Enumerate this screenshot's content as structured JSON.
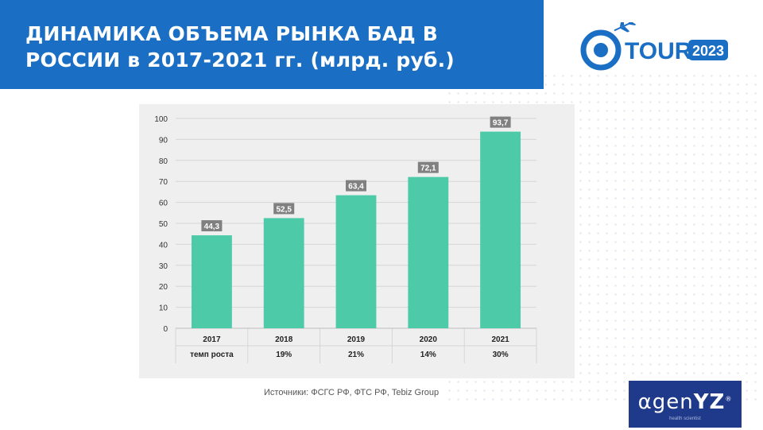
{
  "header": {
    "title": "ДИНАМИКА  ОБЪЕМА РЫНКА  БАД В\nРОССИИ в 2017-2021 гг. (млрд. руб.)"
  },
  "logo_tour": {
    "word": "TOUR",
    "year": "2023",
    "accent_color": "#1a6fc4",
    "icon": "airplane-icon"
  },
  "logo_agenyz": {
    "prefix": "αgen",
    "suffix": "YZ",
    "mark": "®",
    "tagline": "health scientist",
    "bg_color": "#1f3a8a"
  },
  "source_note": "Источники: ФСГС РФ, ФТС РФ, Tebiz Group",
  "chart_data": {
    "type": "bar",
    "categories": [
      "2017",
      "2018",
      "2019",
      "2020",
      "2021"
    ],
    "values": [
      44.3,
      52.5,
      63.4,
      72.1,
      93.7
    ],
    "data_labels": [
      "44,3",
      "52,5",
      "63,4",
      "72,1",
      "93,7"
    ],
    "ylim": [
      0,
      100
    ],
    "yticks": [
      0,
      10,
      20,
      30,
      40,
      50,
      60,
      70,
      80,
      90,
      100
    ],
    "grid": true,
    "bar_color": "#4dcaa8",
    "label_box_color": "#808080",
    "table": {
      "row_label": "темп роста",
      "values": [
        "",
        "19%",
        "21%",
        "14%",
        "30%"
      ]
    }
  }
}
